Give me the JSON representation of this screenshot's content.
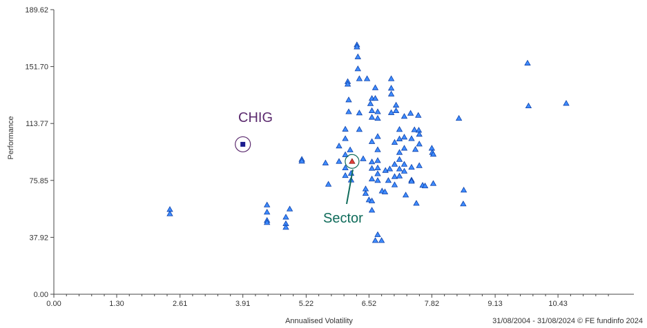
{
  "chart_data": {
    "type": "scatter",
    "xlabel": "Annualised Volatility",
    "ylabel": "Performance",
    "xlim": [
      0,
      12
    ],
    "ylim": [
      0,
      189.62
    ],
    "x_ticks": [
      "0.00",
      "1.30",
      "2.61",
      "3.91",
      "5.22",
      "6.52",
      "7.82",
      "9.13",
      "10.43"
    ],
    "y_ticks": [
      "0.00",
      "37.92",
      "75.85",
      "113.77",
      "151.70",
      "189.62"
    ],
    "footer": "31/08/2004 - 31/08/2024 © FE fundinfo 2024",
    "colors": {
      "points": "#3f8cff",
      "point_edge": "#0b3fa8",
      "highlight": "#1b1b8f",
      "sector": "#e0403a",
      "chig_label": "#5b2a6e",
      "sector_label": "#0f6b5a"
    },
    "annotations": [
      {
        "label": "CHIG",
        "x": 3.91,
        "y": 99.9
      },
      {
        "label": "Sector",
        "x": 6.17,
        "y": 88.5
      }
    ],
    "highlight_point": {
      "label": "CHIG",
      "x": 3.91,
      "y": 99.9
    },
    "sector_point": {
      "label": "Sector",
      "x": 6.17,
      "y": 88.5
    },
    "points": [
      [
        2.4,
        56.5
      ],
      [
        2.4,
        53.6
      ],
      [
        4.41,
        59.5
      ],
      [
        4.41,
        54.7
      ],
      [
        4.41,
        49.2
      ],
      [
        4.41,
        47.8
      ],
      [
        4.8,
        51.4
      ],
      [
        4.8,
        47.0
      ],
      [
        4.8,
        44.6
      ],
      [
        4.88,
        56.8
      ],
      [
        5.13,
        89.9
      ],
      [
        5.13,
        88.7
      ],
      [
        5.62,
        87.5
      ],
      [
        5.68,
        73.3
      ],
      [
        5.9,
        98.8
      ],
      [
        5.9,
        88.5
      ],
      [
        6.03,
        110.0
      ],
      [
        6.03,
        103.7
      ],
      [
        6.03,
        93.0
      ],
      [
        6.03,
        84.2
      ],
      [
        6.03,
        79.1
      ],
      [
        6.08,
        141.7
      ],
      [
        6.08,
        140.0
      ],
      [
        6.1,
        129.5
      ],
      [
        6.1,
        121.6
      ],
      [
        6.13,
        96.2
      ],
      [
        6.15,
        80.6
      ],
      [
        6.15,
        76.1
      ],
      [
        6.27,
        166.2
      ],
      [
        6.27,
        164.8
      ],
      [
        6.29,
        158.2
      ],
      [
        6.29,
        150.2
      ],
      [
        6.32,
        143.6
      ],
      [
        6.32,
        120.8
      ],
      [
        6.32,
        109.8
      ],
      [
        6.4,
        90.3
      ],
      [
        6.45,
        70.2
      ],
      [
        6.45,
        67.2
      ],
      [
        6.52,
        62.9
      ],
      [
        6.48,
        143.6
      ],
      [
        6.58,
        130.5
      ],
      [
        6.55,
        127.0
      ],
      [
        6.58,
        122.3
      ],
      [
        6.58,
        117.9
      ],
      [
        6.58,
        101.7
      ],
      [
        6.58,
        88.2
      ],
      [
        6.58,
        83.9
      ],
      [
        6.58,
        76.8
      ],
      [
        6.58,
        62.2
      ],
      [
        6.58,
        56.0
      ],
      [
        6.65,
        137.6
      ],
      [
        6.65,
        130.5
      ],
      [
        6.7,
        121.6
      ],
      [
        6.7,
        117.2
      ],
      [
        6.7,
        105.1
      ],
      [
        6.7,
        96.3
      ],
      [
        6.7,
        89.1
      ],
      [
        6.7,
        84.2
      ],
      [
        6.7,
        80.3
      ],
      [
        6.7,
        75.8
      ],
      [
        6.7,
        39.7
      ],
      [
        6.65,
        35.8
      ],
      [
        6.78,
        35.8
      ],
      [
        6.79,
        68.8
      ],
      [
        6.85,
        68.2
      ],
      [
        6.86,
        82.5
      ],
      [
        6.92,
        75.8
      ],
      [
        6.95,
        83.5
      ],
      [
        6.98,
        143.6
      ],
      [
        6.98,
        137.3
      ],
      [
        6.98,
        133.4
      ],
      [
        6.98,
        121.0
      ],
      [
        7.05,
        101.2
      ],
      [
        7.05,
        86.6
      ],
      [
        7.05,
        78.4
      ],
      [
        7.05,
        72.9
      ],
      [
        7.08,
        126.0
      ],
      [
        7.08,
        122.3
      ],
      [
        7.15,
        109.8
      ],
      [
        7.15,
        103.5
      ],
      [
        7.15,
        94.5
      ],
      [
        7.15,
        89.8
      ],
      [
        7.15,
        83.5
      ],
      [
        7.15,
        78.8
      ],
      [
        7.25,
        118.5
      ],
      [
        7.25,
        104.7
      ],
      [
        7.25,
        97.3
      ],
      [
        7.25,
        86.6
      ],
      [
        7.25,
        82.0
      ],
      [
        7.28,
        66.1
      ],
      [
        7.38,
        120.6
      ],
      [
        7.4,
        103.7
      ],
      [
        7.4,
        84.6
      ],
      [
        7.4,
        76.1
      ],
      [
        7.4,
        75.3
      ],
      [
        7.46,
        109.6
      ],
      [
        7.48,
        96.5
      ],
      [
        7.5,
        60.6
      ],
      [
        7.54,
        119.2
      ],
      [
        7.55,
        109.3
      ],
      [
        7.56,
        106.6
      ],
      [
        7.56,
        100.1
      ],
      [
        7.56,
        85.7
      ],
      [
        7.63,
        72.6
      ],
      [
        7.68,
        72.2
      ],
      [
        7.82,
        97.3
      ],
      [
        7.83,
        94.5
      ],
      [
        7.85,
        93.3
      ],
      [
        7.85,
        73.8
      ],
      [
        8.38,
        117.2
      ],
      [
        8.48,
        69.4
      ],
      [
        8.47,
        60.2
      ],
      [
        9.8,
        154.0
      ],
      [
        9.82,
        125.5
      ],
      [
        10.6,
        127.2
      ]
    ]
  }
}
